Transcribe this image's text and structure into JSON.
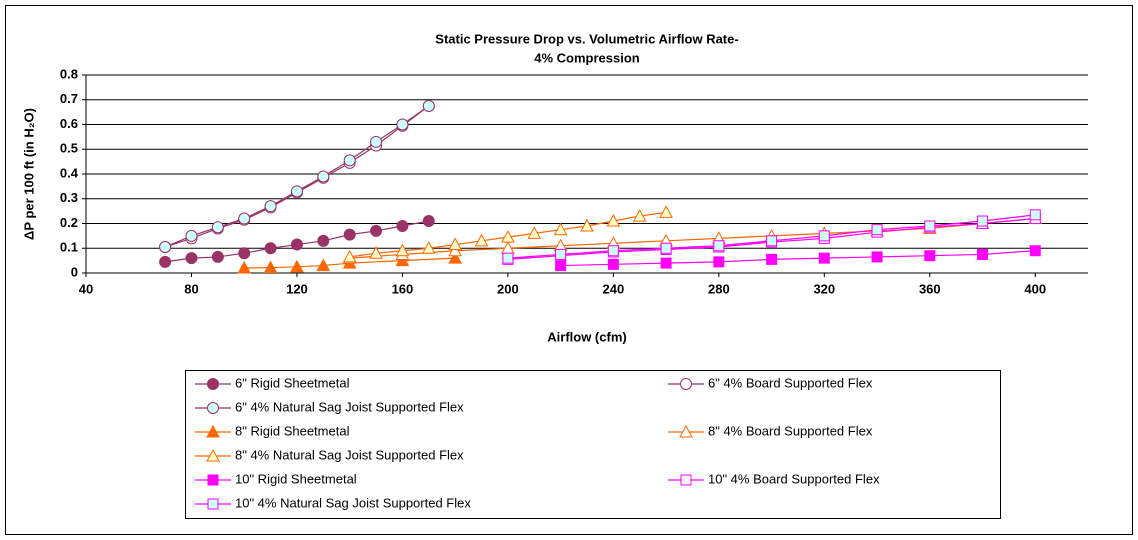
{
  "chart_data": {
    "type": "scatter",
    "title": [
      "Static Pressure Drop vs. Volumetric Airflow Rate-",
      "4% Compression"
    ],
    "x_label": "Airflow (cfm)",
    "y_label": "ΔP per 100 ft (in H₂O)",
    "xlim": [
      40,
      420
    ],
    "ylim": [
      0,
      0.8
    ],
    "xticks": [
      40,
      80,
      120,
      160,
      200,
      240,
      280,
      320,
      360,
      400
    ],
    "yticks": [
      0,
      0.1,
      0.2,
      0.3,
      0.4,
      0.5,
      0.6,
      0.7,
      0.8
    ],
    "grid": true,
    "series": [
      {
        "name": "6\" Rigid Sheetmetal",
        "color": "#993366",
        "marker": "circle",
        "fill": "#993366",
        "x": [
          70,
          80,
          90,
          100,
          110,
          120,
          130,
          140,
          150,
          160,
          170
        ],
        "values": [
          0.045,
          0.06,
          0.065,
          0.08,
          0.1,
          0.115,
          0.13,
          0.155,
          0.17,
          0.19,
          0.21
        ]
      },
      {
        "name": "6\" 4% Board Supported Flex",
        "color": "#993366",
        "marker": "circle",
        "fill": "#ffffff",
        "x": [
          70,
          80,
          90,
          100,
          110,
          120,
          130,
          140,
          150,
          160,
          170
        ],
        "values": [
          0.105,
          0.14,
          0.18,
          0.215,
          0.265,
          0.325,
          0.385,
          0.445,
          0.515,
          0.595,
          0.675
        ]
      },
      {
        "name": "6\" 4% Natural Sag Joist Supported Flex",
        "color": "#993366",
        "marker": "circle",
        "fill": "#ccffff",
        "x": [
          70,
          80,
          90,
          100,
          110,
          120,
          130,
          140,
          150,
          160,
          170
        ],
        "values": [
          0.105,
          0.15,
          0.185,
          0.22,
          0.27,
          0.33,
          0.39,
          0.455,
          0.53,
          0.6,
          0.675
        ]
      },
      {
        "name": "8\" Rigid Sheetmetal",
        "color": "#ff6600",
        "marker": "triangle",
        "fill": "#ff6600",
        "x": [
          100,
          110,
          120,
          130,
          140,
          160,
          180
        ],
        "values": [
          0.02,
          0.022,
          0.025,
          0.03,
          0.04,
          0.05,
          0.06
        ]
      },
      {
        "name": "8\" 4% Board Supported Flex",
        "color": "#ff6600",
        "marker": "triangle",
        "fill": "#ffffff",
        "x": [
          140,
          160,
          180,
          200,
          220,
          240,
          260,
          280,
          300,
          320,
          340,
          360,
          380,
          400
        ],
        "values": [
          0.06,
          0.075,
          0.09,
          0.1,
          0.11,
          0.12,
          0.13,
          0.14,
          0.15,
          0.16,
          0.17,
          0.18,
          0.2,
          0.22
        ]
      },
      {
        "name": "8\" 4% Natural Sag Joist Supported Flex",
        "color": "#ff6600",
        "marker": "triangle",
        "fill": "#ffffcc",
        "x": [
          140,
          150,
          160,
          170,
          180,
          190,
          200,
          210,
          220,
          230,
          240,
          250,
          260
        ],
        "values": [
          0.065,
          0.08,
          0.09,
          0.1,
          0.115,
          0.13,
          0.145,
          0.16,
          0.175,
          0.19,
          0.21,
          0.23,
          0.245
        ]
      },
      {
        "name": "10\" Rigid Sheetmetal",
        "color": "#ff00ff",
        "marker": "square",
        "fill": "#ff00ff",
        "x": [
          220,
          240,
          260,
          280,
          300,
          320,
          340,
          360,
          380,
          400
        ],
        "values": [
          0.03,
          0.035,
          0.04,
          0.045,
          0.055,
          0.06,
          0.065,
          0.07,
          0.075,
          0.09
        ]
      },
      {
        "name": "10\" 4% Board Supported Flex",
        "color": "#ff00ff",
        "marker": "square",
        "fill": "#ffffff",
        "x": [
          200,
          220,
          240,
          260,
          280,
          300,
          320,
          340,
          360,
          380,
          400
        ],
        "values": [
          0.055,
          0.07,
          0.085,
          0.095,
          0.105,
          0.125,
          0.14,
          0.165,
          0.185,
          0.2,
          0.22
        ]
      },
      {
        "name": "10\" 4% Natural Sag Joist Supported Flex",
        "color": "#ff00ff",
        "marker": "square",
        "fill": "#ccffff",
        "x": [
          200,
          220,
          240,
          260,
          280,
          300,
          320,
          340,
          360,
          380,
          400
        ],
        "values": [
          0.06,
          0.075,
          0.09,
          0.1,
          0.11,
          0.13,
          0.15,
          0.175,
          0.19,
          0.21,
          0.235
        ]
      }
    ]
  }
}
